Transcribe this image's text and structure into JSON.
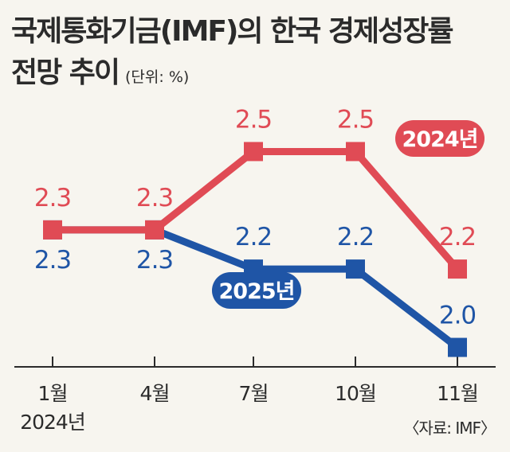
{
  "title": {
    "line1": "국제통화기금(IMF)의 한국 경제성장률",
    "line2": "전망 추이",
    "unit": "(단위: %)"
  },
  "source": "〈자료: IMF〉",
  "colors": {
    "red": "#e04b55",
    "blue": "#1f55a6",
    "axis": "#2b2b2b",
    "background": "#f7f5ef"
  },
  "chart_data": {
    "type": "line",
    "categories": [
      "1월",
      "4월",
      "7월",
      "10월",
      "11월"
    ],
    "first_category_sublabel": "2024년",
    "ylim": [
      1.8,
      2.7
    ],
    "grid": false,
    "series": [
      {
        "name": "2024년",
        "color": "#e04b55",
        "values": [
          2.3,
          2.3,
          2.5,
          2.5,
          2.2
        ],
        "labels": [
          "2.3",
          "2.3",
          "2.5",
          "2.5",
          "2.2"
        ]
      },
      {
        "name": "2025년",
        "color": "#1f55a6",
        "values": [
          2.3,
          2.3,
          2.2,
          2.2,
          2.0
        ],
        "labels": [
          "2.3",
          "2.3",
          "2.2",
          "2.2",
          "2.0"
        ]
      }
    ]
  }
}
